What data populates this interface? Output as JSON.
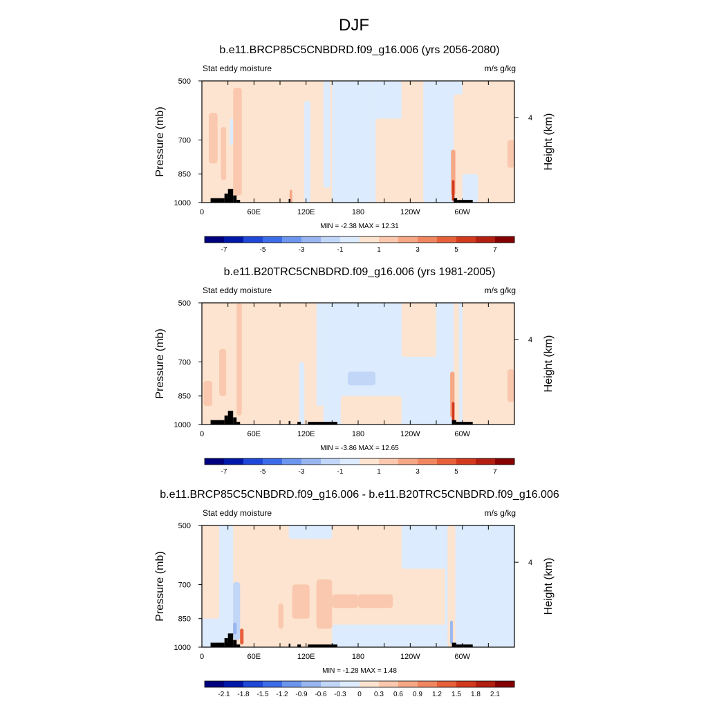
{
  "figure": {
    "title": "DJF"
  },
  "palette": {
    "blues": [
      "#00007f",
      "#0018a8",
      "#1f48d8",
      "#3d6ce8",
      "#6c95ee",
      "#98b5f0",
      "#c2d6f8",
      "#dcebfd"
    ],
    "reds": [
      "#fde4d0",
      "#fac8ae",
      "#f6a785",
      "#f08660",
      "#e6603a",
      "#d23a1e",
      "#b21e10",
      "#850000"
    ],
    "topo": "#000000"
  },
  "chart_data": [
    {
      "type": "heatmap",
      "title": "b.e11.BRCP85C5CNBDRD.f09_g16.006 (yrs 2056-2080)",
      "left_label": "Stat eddy moisture",
      "right_label": "m/s g/kg",
      "ylabel": "Pressure (mb)",
      "ylabel_right": "Height (km)",
      "yticks": [
        "500",
        "700",
        "850",
        "1000"
      ],
      "ytick_values": [
        500,
        700,
        850,
        1000
      ],
      "yticks_right": [
        "4"
      ],
      "ytick_right_values": [
        4
      ],
      "xticks": [
        "0",
        "60E",
        "120E",
        "180",
        "120W",
        "60W"
      ],
      "xtick_values": [
        0,
        60,
        120,
        180,
        240,
        300
      ],
      "xlim": [
        0,
        360
      ],
      "ylim": [
        1000,
        500
      ],
      "minmax_text": "MIN =  -2.38  MAX =  12.31",
      "min": -2.38,
      "max": 12.31,
      "colorbar_labels": [
        "-7",
        "-5",
        "-3",
        "-1",
        "1",
        "3",
        "5",
        "7"
      ],
      "colorbar_levels": [
        -7,
        -6,
        -5,
        -4,
        -3,
        -2,
        -1,
        0,
        1,
        2,
        3,
        4,
        5,
        6,
        7
      ],
      "regions": [
        {
          "lon": [
            0,
            150
          ],
          "lev": [
            500,
            1000
          ],
          "value": 0.5
        },
        {
          "lon": [
            150,
            195
          ],
          "lev": [
            500,
            1000
          ],
          "value": -0.5
        },
        {
          "lon": [
            195,
            230
          ],
          "lev": [
            500,
            1000
          ],
          "value": -0.5
        },
        {
          "lon": [
            200,
            260
          ],
          "lev": [
            620,
            1000
          ],
          "value": 0.5
        },
        {
          "lon": [
            230,
            280
          ],
          "lev": [
            500,
            650
          ],
          "value": 0.5
        },
        {
          "lon": [
            255,
            300
          ],
          "lev": [
            500,
            1000
          ],
          "value": -0.5
        },
        {
          "lon": [
            290,
            360
          ],
          "lev": [
            540,
            1000
          ],
          "value": 0.5
        },
        {
          "lon": [
            300,
            318
          ],
          "lev": [
            850,
            1000
          ],
          "value": -0.5
        },
        {
          "lon": [
            36,
            46
          ],
          "lev": [
            520,
            960
          ],
          "value": 1.5
        },
        {
          "lon": [
            8,
            18
          ],
          "lev": [
            600,
            800
          ],
          "value": 1.5
        },
        {
          "lon": [
            22,
            28
          ],
          "lev": [
            650,
            880
          ],
          "value": 1.5
        },
        {
          "lon": [
            352,
            360
          ],
          "lev": [
            700,
            820
          ],
          "value": 1.5
        },
        {
          "lon": [
            32,
            36
          ],
          "lev": [
            620,
            720
          ],
          "value": -0.5
        },
        {
          "lon": [
            118,
            125
          ],
          "lev": [
            560,
            1000
          ],
          "value": -0.5
        },
        {
          "lon": [
            140,
            148
          ],
          "lev": [
            500,
            920
          ],
          "value": -0.5
        },
        {
          "lon": [
            287,
            292
          ],
          "lev": [
            740,
            960
          ],
          "value": 2.5
        },
        {
          "lon": [
            288,
            291
          ],
          "lev": [
            880,
            990
          ],
          "value": 5.5
        },
        {
          "lon": [
            101,
            104
          ],
          "lev": [
            930,
            1000
          ],
          "value": 2.5
        }
      ],
      "topography": [
        {
          "lon": [
            10,
            26
          ],
          "top": 975
        },
        {
          "lon": [
            26,
            30
          ],
          "top": 950
        },
        {
          "lon": [
            30,
            36
          ],
          "top": 925
        },
        {
          "lon": [
            36,
            40
          ],
          "top": 960
        },
        {
          "lon": [
            40,
            44
          ],
          "top": 985
        },
        {
          "lon": [
            100,
            102
          ],
          "top": 980
        },
        {
          "lon": [
            290,
            294
          ],
          "top": 975
        },
        {
          "lon": [
            294,
            312
          ],
          "top": 985
        }
      ]
    },
    {
      "type": "heatmap",
      "title": "b.e11.B20TRC5CNBDRD.f09_g16.006 (yrs 1981-2005)",
      "left_label": "Stat eddy moisture",
      "right_label": "m/s g/kg",
      "ylabel": "Pressure (mb)",
      "ylabel_right": "Height (km)",
      "yticks": [
        "500",
        "700",
        "850",
        "1000"
      ],
      "ytick_values": [
        500,
        700,
        850,
        1000
      ],
      "yticks_right": [
        "4"
      ],
      "ytick_right_values": [
        4
      ],
      "xticks": [
        "0",
        "60E",
        "120E",
        "180",
        "120W",
        "60W"
      ],
      "xtick_values": [
        0,
        60,
        120,
        180,
        240,
        300
      ],
      "xlim": [
        0,
        360
      ],
      "ylim": [
        1000,
        500
      ],
      "minmax_text": "MIN =  -3.86  MAX =  12.65",
      "min": -3.86,
      "max": 12.65,
      "colorbar_labels": [
        "-7",
        "-5",
        "-3",
        "-1",
        "1",
        "3",
        "5",
        "7"
      ],
      "colorbar_levels": [
        -7,
        -6,
        -5,
        -4,
        -3,
        -2,
        -1,
        0,
        1,
        2,
        3,
        4,
        5,
        6,
        7
      ],
      "regions": [
        {
          "lon": [
            0,
            140
          ],
          "lev": [
            500,
            1000
          ],
          "value": 0.5
        },
        {
          "lon": [
            140,
            310
          ],
          "lev": [
            500,
            1000
          ],
          "value": -0.5
        },
        {
          "lon": [
            230,
            270
          ],
          "lev": [
            500,
            680
          ],
          "value": 0.5
        },
        {
          "lon": [
            160,
            230
          ],
          "lev": [
            850,
            1000
          ],
          "value": 0.5
        },
        {
          "lon": [
            300,
            360
          ],
          "lev": [
            500,
            1000
          ],
          "value": 0.5
        },
        {
          "lon": [
            168,
            200
          ],
          "lev": [
            740,
            800
          ],
          "value": -1.5
        },
        {
          "lon": [
            40,
            46
          ],
          "lev": [
            500,
            950
          ],
          "value": 1.5
        },
        {
          "lon": [
            2,
            12
          ],
          "lev": [
            780,
            900
          ],
          "value": 1.5
        },
        {
          "lon": [
            20,
            28
          ],
          "lev": [
            650,
            850
          ],
          "value": 1.5
        },
        {
          "lon": [
            352,
            360
          ],
          "lev": [
            730,
            880
          ],
          "value": 1.5
        },
        {
          "lon": [
            112,
            118
          ],
          "lev": [
            700,
            1000
          ],
          "value": -0.5
        },
        {
          "lon": [
            132,
            140
          ],
          "lev": [
            500,
            900
          ],
          "value": -0.5
        },
        {
          "lon": [
            290,
            296
          ],
          "lev": [
            500,
            1000
          ],
          "value": 0.5
        },
        {
          "lon": [
            286,
            291
          ],
          "lev": [
            740,
            960
          ],
          "value": 2.5
        },
        {
          "lon": [
            288,
            291
          ],
          "lev": [
            880,
            990
          ],
          "value": 5.5
        }
      ],
      "topography": [
        {
          "lon": [
            10,
            26
          ],
          "top": 975
        },
        {
          "lon": [
            26,
            30
          ],
          "top": 950
        },
        {
          "lon": [
            30,
            36
          ],
          "top": 925
        },
        {
          "lon": [
            36,
            40
          ],
          "top": 960
        },
        {
          "lon": [
            40,
            44
          ],
          "top": 985
        },
        {
          "lon": [
            100,
            102
          ],
          "top": 980
        },
        {
          "lon": [
            110,
            114
          ],
          "top": 985
        },
        {
          "lon": [
            122,
            156
          ],
          "top": 985
        },
        {
          "lon": [
            288,
            293
          ],
          "top": 975
        },
        {
          "lon": [
            293,
            312
          ],
          "top": 985
        }
      ]
    },
    {
      "type": "heatmap",
      "title": "b.e11.BRCP85C5CNBDRD.f09_g16.006 - b.e11.B20TRC5CNBDRD.f09_g16.006",
      "left_label": "Stat eddy moisture",
      "right_label": "m/s g/kg",
      "ylabel": "Pressure (mb)",
      "ylabel_right": "Height (km)",
      "yticks": [
        "500",
        "700",
        "850",
        "1000"
      ],
      "ytick_values": [
        500,
        700,
        850,
        1000
      ],
      "yticks_right": [
        "4"
      ],
      "ytick_right_values": [
        4
      ],
      "xticks": [
        "0",
        "60E",
        "120E",
        "180",
        "120W",
        "60W"
      ],
      "xtick_values": [
        0,
        60,
        120,
        180,
        240,
        300
      ],
      "xlim": [
        0,
        360
      ],
      "ylim": [
        1000,
        500
      ],
      "minmax_text": "MIN =  -1.28  MAX =  1.48",
      "min": -1.28,
      "max": 1.48,
      "colorbar_labels": [
        "-2.1",
        "-1.8",
        "-1.5",
        "-1.2",
        "-0.9",
        "-0.6",
        "-0.3",
        "0",
        "0.3",
        "0.6",
        "0.9",
        "1.2",
        "1.5",
        "1.8",
        "2.1"
      ],
      "colorbar_levels": [
        -2.1,
        -1.8,
        -1.5,
        -1.2,
        -0.9,
        -0.6,
        -0.3,
        0,
        0.3,
        0.6,
        0.9,
        1.2,
        1.5,
        1.8,
        2.1
      ],
      "regions": [
        {
          "lon": [
            0,
            360
          ],
          "lev": [
            500,
            1000
          ],
          "value": 0.15
        },
        {
          "lon": [
            0,
            36
          ],
          "lev": [
            500,
            1000
          ],
          "value": -0.15
        },
        {
          "lon": [
            0,
            20
          ],
          "lev": [
            500,
            850
          ],
          "value": 0.15
        },
        {
          "lon": [
            230,
            360
          ],
          "lev": [
            500,
            640
          ],
          "value": -0.15
        },
        {
          "lon": [
            280,
            360
          ],
          "lev": [
            500,
            1000
          ],
          "value": -0.15
        },
        {
          "lon": [
            150,
            290
          ],
          "lev": [
            880,
            1000
          ],
          "value": -0.15
        },
        {
          "lon": [
            100,
            150
          ],
          "lev": [
            500,
            540
          ],
          "value": -0.15
        },
        {
          "lon": [
            36,
            44
          ],
          "lev": [
            690,
            960
          ],
          "value": -0.45
        },
        {
          "lon": [
            36,
            40
          ],
          "lev": [
            870,
            930
          ],
          "value": -0.75
        },
        {
          "lon": [
            104,
            124
          ],
          "lev": [
            700,
            850
          ],
          "value": 0.45
        },
        {
          "lon": [
            132,
            150
          ],
          "lev": [
            680,
            900
          ],
          "value": 0.45
        },
        {
          "lon": [
            150,
            180
          ],
          "lev": [
            740,
            800
          ],
          "value": 0.45
        },
        {
          "lon": [
            180,
            220
          ],
          "lev": [
            740,
            800
          ],
          "value": 0.45
        },
        {
          "lon": [
            88,
            94
          ],
          "lev": [
            780,
            900
          ],
          "value": 0.45
        },
        {
          "lon": [
            44,
            48
          ],
          "lev": [
            900,
            985
          ],
          "value": 1.35
        },
        {
          "lon": [
            283,
            292
          ],
          "lev": [
            500,
            1000
          ],
          "value": 0.15
        },
        {
          "lon": [
            286,
            289
          ],
          "lev": [
            860,
            980
          ],
          "value": -0.75
        }
      ],
      "topography": [
        {
          "lon": [
            10,
            26
          ],
          "top": 975
        },
        {
          "lon": [
            26,
            30
          ],
          "top": 950
        },
        {
          "lon": [
            30,
            36
          ],
          "top": 925
        },
        {
          "lon": [
            36,
            40
          ],
          "top": 960
        },
        {
          "lon": [
            40,
            44
          ],
          "top": 985
        },
        {
          "lon": [
            100,
            102
          ],
          "top": 980
        },
        {
          "lon": [
            110,
            114
          ],
          "top": 985
        },
        {
          "lon": [
            122,
            156
          ],
          "top": 985
        },
        {
          "lon": [
            288,
            293
          ],
          "top": 975
        },
        {
          "lon": [
            293,
            312
          ],
          "top": 985
        }
      ]
    }
  ]
}
